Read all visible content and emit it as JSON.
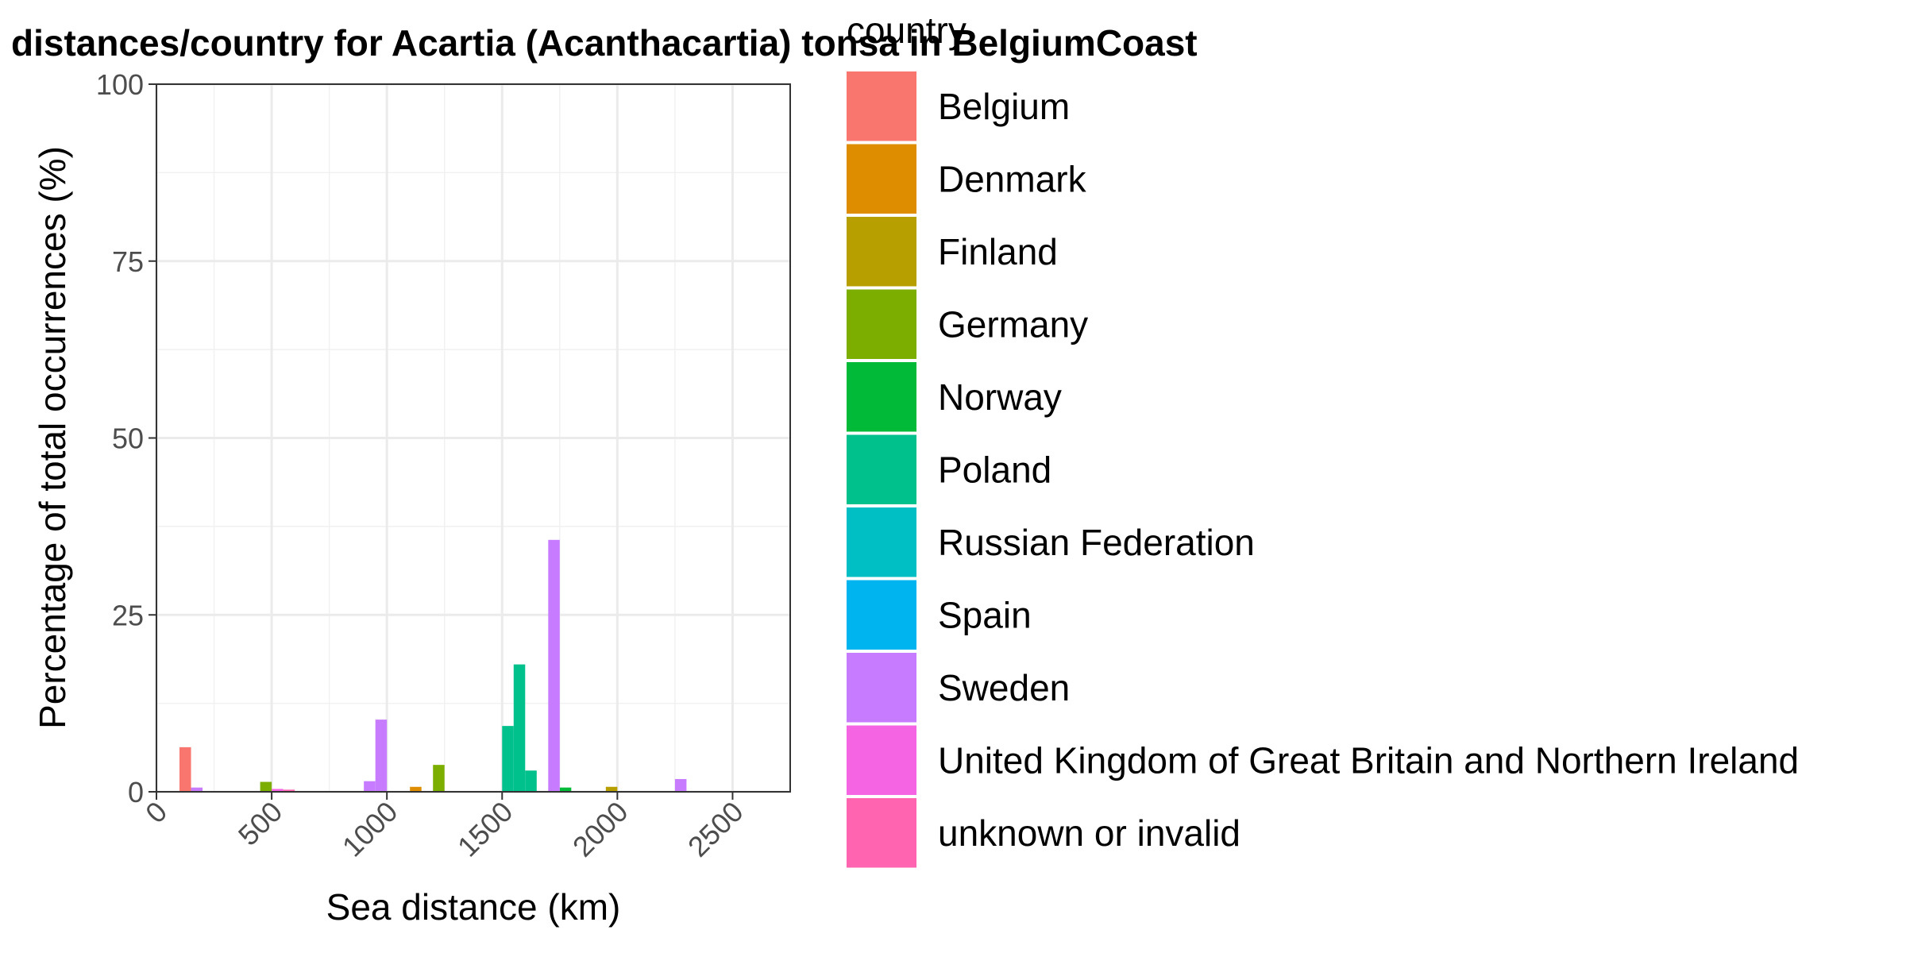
{
  "chart_data": {
    "type": "bar",
    "title": "distances/country for Acartia (Acanthacartia) tonsa in BelgiumCoast",
    "xlabel": "Sea distance (km)",
    "ylabel": "Percentage of total occurrences (%)",
    "xlim": [
      0,
      2750
    ],
    "ylim": [
      0,
      100
    ],
    "x_ticks": [
      0,
      500,
      1000,
      1500,
      2000,
      2500
    ],
    "y_ticks": [
      0,
      25,
      50,
      75,
      100
    ],
    "bin_width": 50,
    "grid": true,
    "legend_position": "right",
    "legend_title": "country",
    "series": [
      {
        "name": "Belgium",
        "color": "#F8766D",
        "bins": [
          {
            "x": 125,
            "y": 6.3
          }
        ]
      },
      {
        "name": "Denmark",
        "color": "#DE8C00",
        "bins": [
          {
            "x": 1125,
            "y": 0.7
          }
        ]
      },
      {
        "name": "Finland",
        "color": "#B79F00",
        "bins": [
          {
            "x": 1975,
            "y": 0.7
          }
        ]
      },
      {
        "name": "Germany",
        "color": "#7CAE00",
        "bins": [
          {
            "x": 475,
            "y": 1.4
          },
          {
            "x": 1225,
            "y": 3.8
          }
        ]
      },
      {
        "name": "Norway",
        "color": "#00BA38",
        "bins": [
          {
            "x": 1775,
            "y": 0.6
          }
        ]
      },
      {
        "name": "Poland",
        "color": "#00C08B",
        "bins": [
          {
            "x": 1525,
            "y": 9.3
          },
          {
            "x": 1575,
            "y": 18.0
          },
          {
            "x": 1625,
            "y": 3.0
          }
        ]
      },
      {
        "name": "Russian Federation",
        "color": "#00BFC4",
        "bins": []
      },
      {
        "name": "Spain",
        "color": "#00B4F0",
        "bins": []
      },
      {
        "name": "Sweden",
        "color": "#C77CFF",
        "bins": [
          {
            "x": 175,
            "y": 0.6
          },
          {
            "x": 925,
            "y": 1.5
          },
          {
            "x": 975,
            "y": 10.2
          },
          {
            "x": 1725,
            "y": 35.6
          },
          {
            "x": 2275,
            "y": 1.8
          }
        ]
      },
      {
        "name": "United Kingdom of Great Britain and Northern Ireland",
        "color": "#F564E3",
        "bins": [
          {
            "x": 525,
            "y": 0.4
          }
        ]
      },
      {
        "name": "unknown or invalid",
        "color": "#FF64B0",
        "bins": [
          {
            "x": 575,
            "y": 0.3
          }
        ]
      }
    ]
  }
}
